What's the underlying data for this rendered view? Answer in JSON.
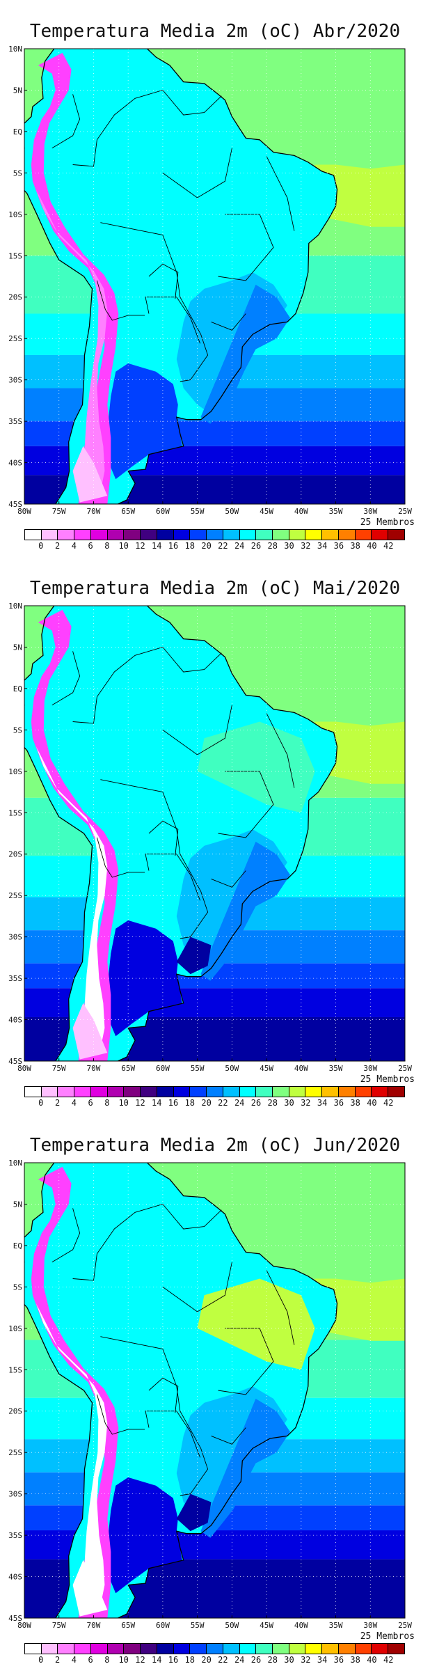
{
  "panels": [
    {
      "title": "Temperatura Media 2m (oC) Abr/2020",
      "month": "Abr"
    },
    {
      "title": "Temperatura Media 2m (oC) Mai/2020",
      "month": "Mai"
    },
    {
      "title": "Temperatura Media 2m (oC) Jun/2020",
      "month": "Jun"
    }
  ],
  "lat_labels": [
    "10N",
    "5N",
    "EQ",
    "5S",
    "10S",
    "15S",
    "20S",
    "25S",
    "30S",
    "35S",
    "40S",
    "45S"
  ],
  "lon_labels": [
    "80W",
    "75W",
    "70W",
    "65W",
    "60W",
    "55W",
    "50W",
    "45W",
    "40W",
    "35W",
    "30W",
    "25W"
  ],
  "members_label": "25 Membros",
  "legend": {
    "ticks": [
      "0",
      "2",
      "4",
      "6",
      "8",
      "10",
      "12",
      "14",
      "16",
      "18",
      "20",
      "22",
      "24",
      "26",
      "28",
      "30",
      "32",
      "34",
      "36",
      "38",
      "40",
      "42"
    ],
    "colors": [
      "#ffffff",
      "#ffc0ff",
      "#ff80ff",
      "#ff40ff",
      "#e000e0",
      "#b000b0",
      "#800080",
      "#400080",
      "#0000a0",
      "#0000e0",
      "#0040ff",
      "#0080ff",
      "#00c0ff",
      "#00ffff",
      "#40ffc0",
      "#80ff80",
      "#c0ff40",
      "#ffff00",
      "#ffc000",
      "#ff8000",
      "#ff4000",
      "#e00000",
      "#a00000"
    ]
  },
  "colors": {
    "ocean_warm": "#80ff80",
    "land_mid": "#00ffff",
    "land_cool": "#00c0ff",
    "cold_ocean": "#0000e0",
    "andes": "#ff40ff",
    "andes_peak": "#ffffff",
    "hot_spot": "#c0ff40"
  }
}
